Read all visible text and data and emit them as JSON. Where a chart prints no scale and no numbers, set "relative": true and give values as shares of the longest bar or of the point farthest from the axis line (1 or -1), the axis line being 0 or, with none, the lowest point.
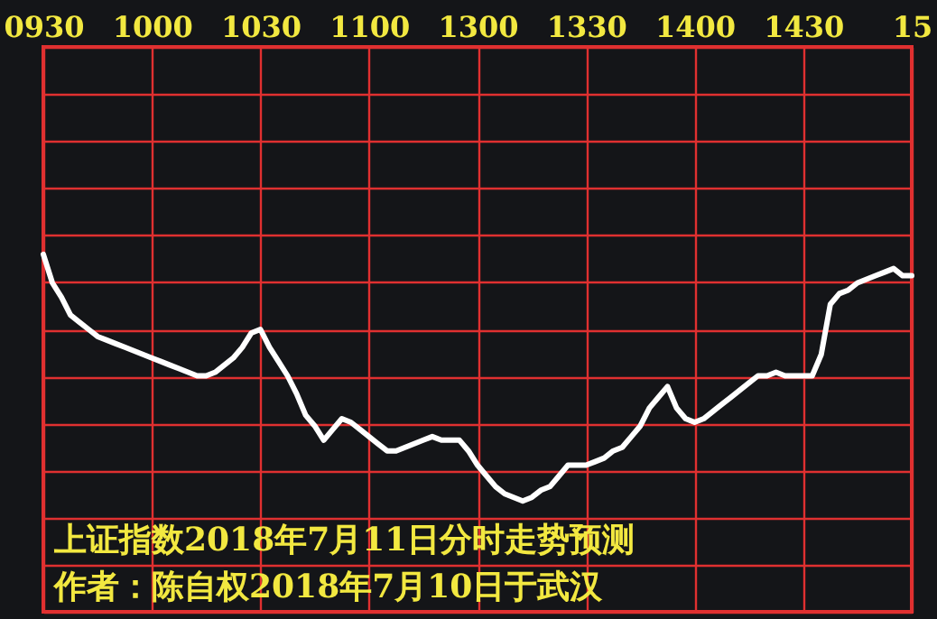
{
  "chart_data": {
    "type": "line",
    "relative": true,
    "grid": true,
    "categories": [
      "0930",
      null,
      null,
      null,
      null,
      null,
      null,
      null,
      null,
      null,
      null,
      null,
      "1000",
      null,
      null,
      null,
      null,
      null,
      null,
      null,
      null,
      null,
      null,
      null,
      "1030",
      null,
      null,
      null,
      null,
      null,
      null,
      null,
      null,
      null,
      null,
      null,
      "1100",
      null,
      null,
      null,
      null,
      null,
      null,
      null,
      null,
      null,
      null,
      null,
      "1300",
      null,
      null,
      null,
      null,
      null,
      null,
      null,
      null,
      null,
      null,
      null,
      "1330",
      null,
      null,
      null,
      null,
      null,
      null,
      null,
      null,
      null,
      null,
      null,
      "1400",
      null,
      null,
      null,
      null,
      null,
      null,
      null,
      null,
      null,
      null,
      null,
      "1430",
      null,
      null,
      null,
      null,
      null,
      null,
      null,
      null,
      null,
      null,
      null,
      "15"
    ],
    "series": [
      {
        "color": "#ffffff",
        "values": [
          1.0,
          0.92,
          0.88,
          0.83,
          0.81,
          0.79,
          0.77,
          0.76,
          0.75,
          0.74,
          0.73,
          0.72,
          0.71,
          0.7,
          0.69,
          0.68,
          0.67,
          0.66,
          0.66,
          0.67,
          0.69,
          0.71,
          0.74,
          0.78,
          0.79,
          0.74,
          0.7,
          0.66,
          0.61,
          0.55,
          0.52,
          0.48,
          0.51,
          0.54,
          0.53,
          0.51,
          0.49,
          0.47,
          0.45,
          0.45,
          0.46,
          0.47,
          0.48,
          0.49,
          0.48,
          0.48,
          0.48,
          0.45,
          0.41,
          0.38,
          0.35,
          0.33,
          0.32,
          0.31,
          0.32,
          0.34,
          0.35,
          0.38,
          0.41,
          0.41,
          0.41,
          0.42,
          0.43,
          0.45,
          0.46,
          0.49,
          0.52,
          0.57,
          0.6,
          0.63,
          0.57,
          0.54,
          0.53,
          0.54,
          0.56,
          0.58,
          0.6,
          0.62,
          0.64,
          0.66,
          0.66,
          0.67,
          0.66,
          0.66,
          0.66,
          0.66,
          0.72,
          0.86,
          0.89,
          0.9,
          0.92,
          0.93,
          0.94,
          0.95,
          0.96,
          0.94,
          0.94
        ]
      }
    ],
    "annotations": [
      "上证指数2018年7月11日分时走势预测",
      "作者：陈自权2018年7月10日于武汉"
    ]
  }
}
